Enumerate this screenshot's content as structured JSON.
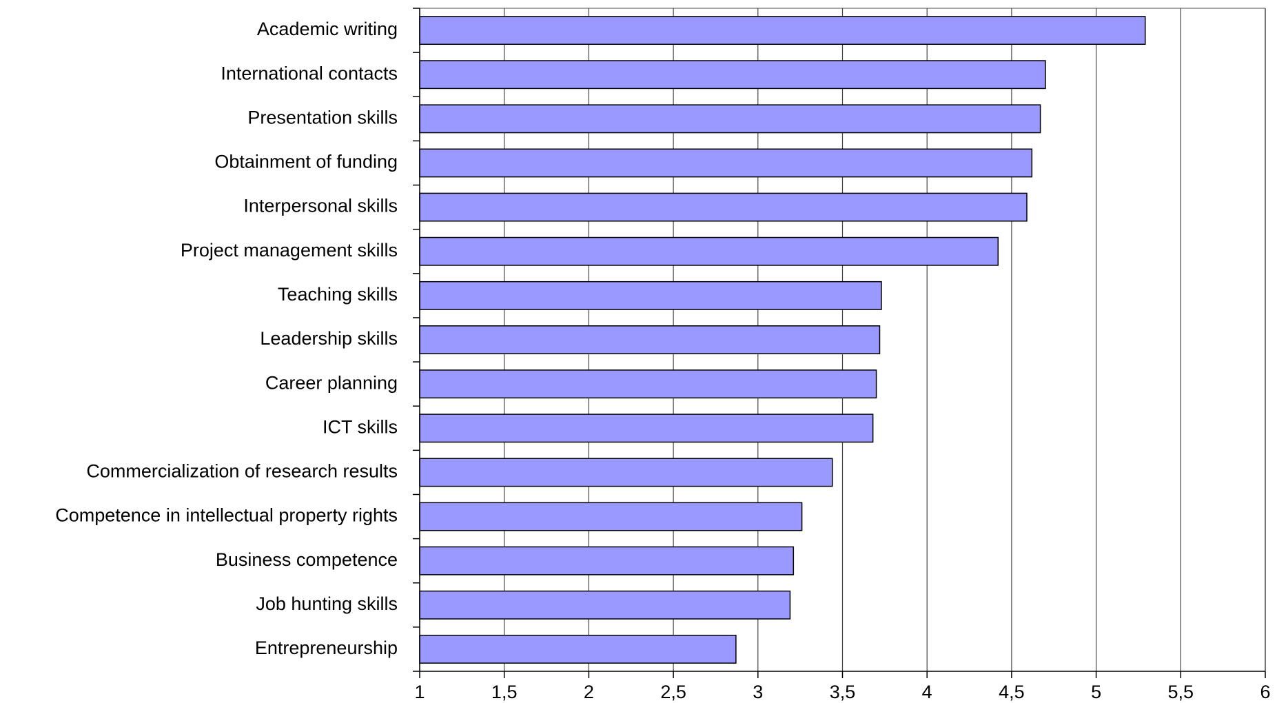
{
  "chart_data": {
    "type": "bar",
    "orientation": "horizontal",
    "categories": [
      "Academic writing",
      "International contacts",
      "Presentation skills",
      "Obtainment of funding",
      "Interpersonal skills",
      "Project management skills",
      "Teaching skills",
      "Leadership skills",
      "Career planning",
      "ICT skills",
      "Commercialization of research results",
      "Competence in intellectual property rights",
      "Business competence",
      "Job hunting skills",
      "Entrepreneurship"
    ],
    "values": [
      5.29,
      4.7,
      4.67,
      4.62,
      4.59,
      4.42,
      3.73,
      3.72,
      3.7,
      3.68,
      3.44,
      3.26,
      3.21,
      3.19,
      2.87
    ],
    "color": "#9999ff",
    "xlim": [
      1,
      6
    ],
    "xticks": [
      1,
      {
        "value": 1.5,
        "label": "1,5"
      },
      2,
      {
        "value": 2.5,
        "label": "2,5"
      },
      3,
      {
        "value": 3.5,
        "label": "3,5"
      },
      4,
      {
        "value": 4.5,
        "label": "4,5"
      },
      5,
      {
        "value": 5.5,
        "label": "5,5"
      },
      6
    ],
    "grid": true
  }
}
